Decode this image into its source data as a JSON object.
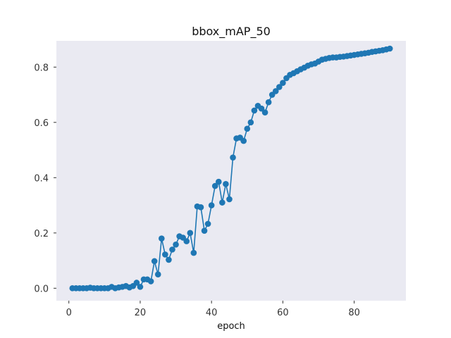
{
  "chart_data": {
    "type": "line",
    "title": "bbox_mAP_50",
    "xlabel": "epoch",
    "ylabel": "",
    "xlim": [
      -3.5,
      94.5
    ],
    "ylim": [
      -0.045,
      0.895
    ],
    "xticks": [
      0,
      20,
      40,
      60,
      80
    ],
    "yticks": [
      0.0,
      0.2,
      0.4,
      0.6,
      0.8
    ],
    "ytick_labels": [
      "0.0",
      "0.2",
      "0.4",
      "0.6",
      "0.8"
    ],
    "xtick_labels": [
      "0",
      "20",
      "40",
      "60",
      "80"
    ],
    "grid": false,
    "legend": "none",
    "series": [
      {
        "color": "#1f77b4",
        "marker": "circle",
        "x": [
          1,
          2,
          3,
          4,
          5,
          6,
          7,
          8,
          9,
          10,
          11,
          12,
          13,
          14,
          15,
          16,
          17,
          18,
          19,
          20,
          21,
          22,
          23,
          24,
          25,
          26,
          27,
          28,
          29,
          30,
          31,
          32,
          33,
          34,
          35,
          36,
          37,
          38,
          39,
          40,
          41,
          42,
          43,
          44,
          45,
          46,
          47,
          48,
          49,
          50,
          51,
          52,
          53,
          54,
          55,
          56,
          57,
          58,
          59,
          60,
          61,
          62,
          63,
          64,
          65,
          66,
          67,
          68,
          69,
          70,
          71,
          72,
          73,
          74,
          75,
          76,
          77,
          78,
          79,
          80,
          81,
          82,
          83,
          84,
          85,
          86,
          87,
          88,
          89,
          90
        ],
        "values": [
          0.0,
          0.0,
          0.0,
          0.0,
          0.0,
          0.002,
          0.0,
          0.0,
          0.0,
          0.0,
          0.0,
          0.005,
          0.0,
          0.003,
          0.005,
          0.008,
          0.003,
          0.008,
          0.02,
          0.005,
          0.032,
          0.032,
          0.025,
          0.098,
          0.05,
          0.18,
          0.122,
          0.103,
          0.14,
          0.158,
          0.188,
          0.183,
          0.17,
          0.2,
          0.128,
          0.296,
          0.293,
          0.208,
          0.233,
          0.3,
          0.37,
          0.385,
          0.31,
          0.377,
          0.322,
          0.473,
          0.542,
          0.545,
          0.533,
          0.577,
          0.6,
          0.643,
          0.66,
          0.65,
          0.636,
          0.673,
          0.7,
          0.713,
          0.728,
          0.743,
          0.76,
          0.772,
          0.778,
          0.785,
          0.792,
          0.798,
          0.805,
          0.81,
          0.813,
          0.82,
          0.827,
          0.83,
          0.833,
          0.835,
          0.835,
          0.837,
          0.838,
          0.84,
          0.842,
          0.844,
          0.846,
          0.848,
          0.85,
          0.852,
          0.855,
          0.857,
          0.859,
          0.861,
          0.864,
          0.867
        ]
      }
    ]
  }
}
